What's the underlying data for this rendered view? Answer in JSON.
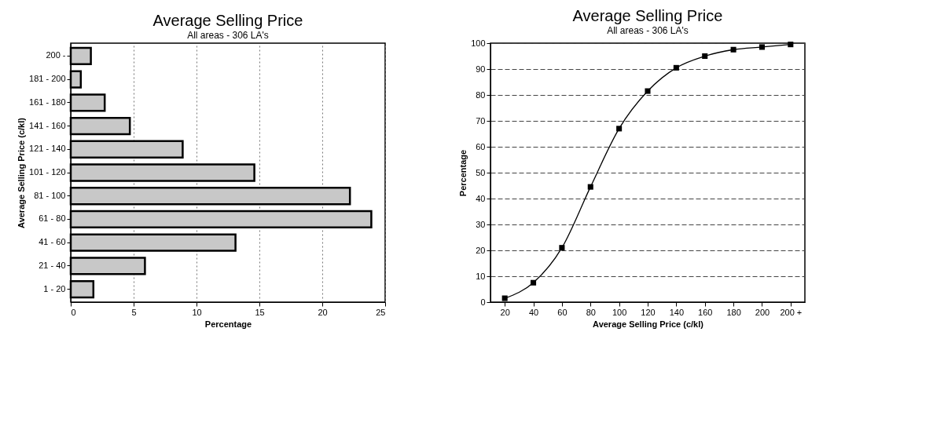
{
  "chart_data": [
    {
      "type": "bar",
      "title": "Average Selling Price",
      "subtitle": "All areas  -  306 LA's",
      "orientation": "horizontal",
      "xlabel": "Percentage",
      "ylabel": "Average Selling Price (c/kl)",
      "categories": [
        "200 -",
        "181 - 200",
        "161 - 180",
        "141 - 160",
        "121 - 140",
        "101 - 120",
        "81 - 100",
        "61 - 80",
        "41 - 60",
        "21 - 40",
        "1 - 20"
      ],
      "values": [
        1.6,
        0.8,
        2.7,
        4.7,
        8.9,
        14.6,
        22.2,
        23.9,
        13.1,
        5.9,
        1.8
      ],
      "color": "#c8c8c8",
      "xlim": [
        0,
        25
      ],
      "xticks": [
        0,
        5,
        10,
        15,
        20,
        25
      ],
      "grid": "x"
    },
    {
      "type": "line",
      "title": "Average Selling Price",
      "subtitle": "All areas  -  306 LA's",
      "xlabel": "Average Selling Price (c/kl)",
      "ylabel": "Percentage",
      "categories": [
        "20",
        "40",
        "60",
        "80",
        "100",
        "120",
        "140",
        "160",
        "180",
        "200",
        "200 +"
      ],
      "values": [
        1.5,
        7.5,
        21,
        44.5,
        67,
        81.5,
        90.5,
        95,
        97.5,
        98.5,
        99.5
      ],
      "color": "#000000",
      "marker": "square",
      "line_style": "solid",
      "ylim": [
        0,
        100
      ],
      "yticks": [
        0,
        10,
        20,
        30,
        40,
        50,
        60,
        70,
        80,
        90,
        100
      ],
      "grid": "y"
    }
  ]
}
